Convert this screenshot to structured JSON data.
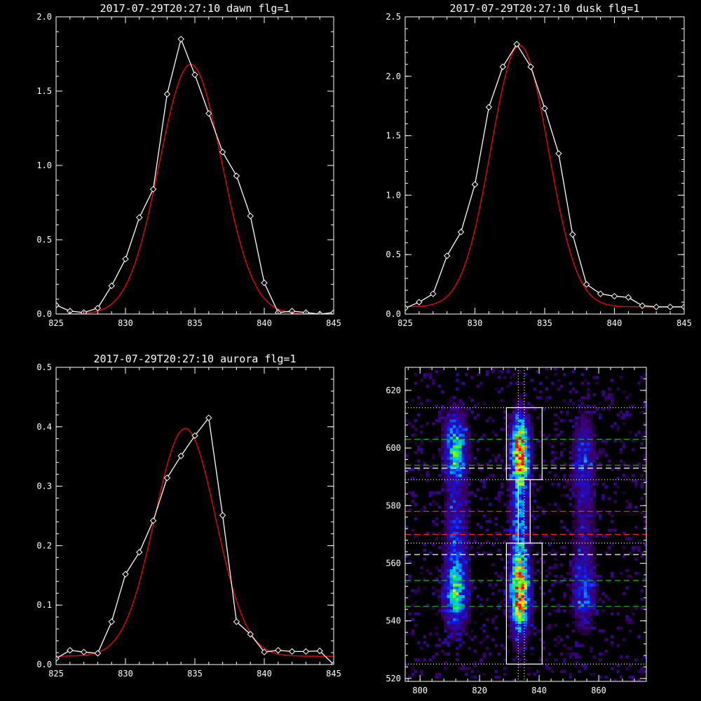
{
  "chart_data": [
    {
      "type": "line",
      "title": "2017-07-29T20:27:10 dawn flg=1",
      "xlim": [
        825,
        845
      ],
      "ylim": [
        0,
        2.0
      ],
      "xticks": [
        825,
        830,
        835,
        840,
        845
      ],
      "yticks": [
        0.0,
        0.5,
        1.0,
        1.5,
        2.0
      ],
      "ytick_labels": [
        "0.0",
        "0.5",
        "1.0",
        "1.5",
        "2.0"
      ],
      "series": [
        {
          "color": "#ffffff",
          "marker": "diamond",
          "x": [
            825,
            826,
            827,
            828,
            829,
            830,
            831,
            832,
            833,
            834,
            835,
            836,
            837,
            838,
            839,
            840,
            841,
            842,
            843,
            844,
            845
          ],
          "values": [
            0.06,
            0.02,
            0.01,
            0.04,
            0.19,
            0.37,
            0.65,
            0.84,
            1.48,
            1.85,
            1.61,
            1.35,
            1.09,
            0.93,
            0.66,
            0.21,
            0.01,
            0.02,
            0.01,
            0.0,
            0.01
          ]
        },
        {
          "color": "#ff0000",
          "kind": "gaussian-fit",
          "amplitude": 1.68,
          "center": 834.7,
          "sigma": 2.25,
          "offset": 0.0
        }
      ]
    },
    {
      "type": "line",
      "title": "2017-07-29T20:27:10 dusk flg=1",
      "xlim": [
        825,
        845
      ],
      "ylim": [
        0,
        2.5
      ],
      "xticks": [
        825,
        830,
        835,
        840,
        845
      ],
      "yticks": [
        0.0,
        0.5,
        1.0,
        1.5,
        2.0,
        2.5
      ],
      "ytick_labels": [
        "0.0",
        "0.5",
        "1.0",
        "1.5",
        "2.0",
        "2.5"
      ],
      "series": [
        {
          "color": "#ffffff",
          "marker": "diamond",
          "x": [
            825,
            826,
            827,
            828,
            829,
            830,
            831,
            832,
            833,
            834,
            835,
            836,
            837,
            838,
            839,
            840,
            841,
            842,
            843,
            844,
            845
          ],
          "values": [
            0.05,
            0.1,
            0.17,
            0.49,
            0.69,
            1.09,
            1.74,
            2.08,
            2.27,
            2.08,
            1.73,
            1.35,
            0.67,
            0.25,
            0.17,
            0.15,
            0.14,
            0.07,
            0.06,
            0.06,
            0.06
          ]
        },
        {
          "color": "#ff0000",
          "kind": "gaussian-fit",
          "amplitude": 2.2,
          "center": 833.2,
          "sigma": 2.05,
          "offset": 0.06
        }
      ]
    },
    {
      "type": "line",
      "title": "2017-07-29T20:27:10 aurora flg=1",
      "xlim": [
        825,
        845
      ],
      "ylim": [
        0,
        0.5
      ],
      "xticks": [
        825,
        830,
        835,
        840,
        845
      ],
      "yticks": [
        0.0,
        0.1,
        0.2,
        0.3,
        0.4,
        0.5
      ],
      "ytick_labels": [
        "0.0",
        "0.1",
        "0.2",
        "0.3",
        "0.4",
        "0.5"
      ],
      "series": [
        {
          "color": "#ffffff",
          "marker": "diamond",
          "x": [
            825,
            826,
            827,
            828,
            829,
            830,
            831,
            832,
            833,
            834,
            835,
            836,
            837,
            838,
            839,
            840,
            841,
            842,
            843,
            844,
            845
          ],
          "values": [
            0.01,
            0.024,
            0.021,
            0.019,
            0.072,
            0.152,
            0.189,
            0.242,
            0.314,
            0.351,
            0.385,
            0.415,
            0.251,
            0.072,
            0.051,
            0.021,
            0.024,
            0.022,
            0.022,
            0.023,
            0.0
          ]
        },
        {
          "color": "#ff0000",
          "kind": "gaussian-fit",
          "amplitude": 0.383,
          "center": 834.3,
          "sigma": 2.2,
          "offset": 0.014
        }
      ]
    },
    {
      "type": "heatmap",
      "title": "",
      "xlim": [
        795,
        876
      ],
      "ylim": [
        519,
        628
      ],
      "xticks": [
        800,
        820,
        840,
        860
      ],
      "yticks": [
        520,
        540,
        560,
        580,
        600,
        620
      ],
      "ytick_labels": [
        "520",
        "540",
        "560",
        "580",
        "600",
        "620"
      ],
      "emission_columns": [
        {
          "x": 812,
          "width": 5,
          "blobs": [
            [
              600,
              8,
              0.55
            ],
            [
              550,
              8,
              0.6
            ],
            [
              573,
              10,
              0.25
            ]
          ]
        },
        {
          "x": 833.5,
          "width": 4,
          "blobs": [
            [
              599,
              8,
              0.95
            ],
            [
              550,
              9,
              1.0
            ],
            [
              575,
              12,
              0.35
            ]
          ]
        },
        {
          "x": 855,
          "width": 5,
          "blobs": [
            [
              598,
              9,
              0.25
            ],
            [
              550,
              8,
              0.3
            ],
            [
              575,
              12,
              0.15
            ]
          ]
        }
      ],
      "boxes": [
        {
          "x": [
            829,
            841
          ],
          "y": [
            589,
            614
          ]
        },
        {
          "x": [
            829,
            841
          ],
          "y": [
            525,
            567
          ]
        },
        {
          "x": [
            833,
            837
          ],
          "y": [
            567,
            589
          ]
        }
      ],
      "lines": [
        {
          "orientation": "h",
          "value": 614,
          "color": "#ffffff",
          "style": "dotted"
        },
        {
          "orientation": "h",
          "value": 603,
          "color": "#00c000",
          "style": "dashed"
        },
        {
          "orientation": "h",
          "value": 594,
          "color": "#00c000",
          "style": "dashed"
        },
        {
          "orientation": "h",
          "value": 593,
          "color": "#ffffff",
          "style": "dashed"
        },
        {
          "orientation": "h",
          "value": 589,
          "color": "#ffffff",
          "style": "dotted"
        },
        {
          "orientation": "h",
          "value": 578,
          "color": "#ff2020",
          "style": "dashed"
        },
        {
          "orientation": "h",
          "value": 570,
          "color": "#ff2020",
          "style": "dashed"
        },
        {
          "orientation": "h",
          "value": 567,
          "color": "#ffffff",
          "style": "dotted"
        },
        {
          "orientation": "h",
          "value": 563,
          "color": "#ffffff",
          "style": "dashed"
        },
        {
          "orientation": "h",
          "value": 554,
          "color": "#00c000",
          "style": "dashed"
        },
        {
          "orientation": "h",
          "value": 545,
          "color": "#00c000",
          "style": "dashed"
        },
        {
          "orientation": "h",
          "value": 525,
          "color": "#ffffff",
          "style": "dotted"
        },
        {
          "orientation": "v",
          "value": 833,
          "color": "#ffffff",
          "style": "dotted"
        },
        {
          "orientation": "v",
          "value": 835,
          "color": "#ffffff",
          "style": "dotted"
        }
      ]
    }
  ]
}
